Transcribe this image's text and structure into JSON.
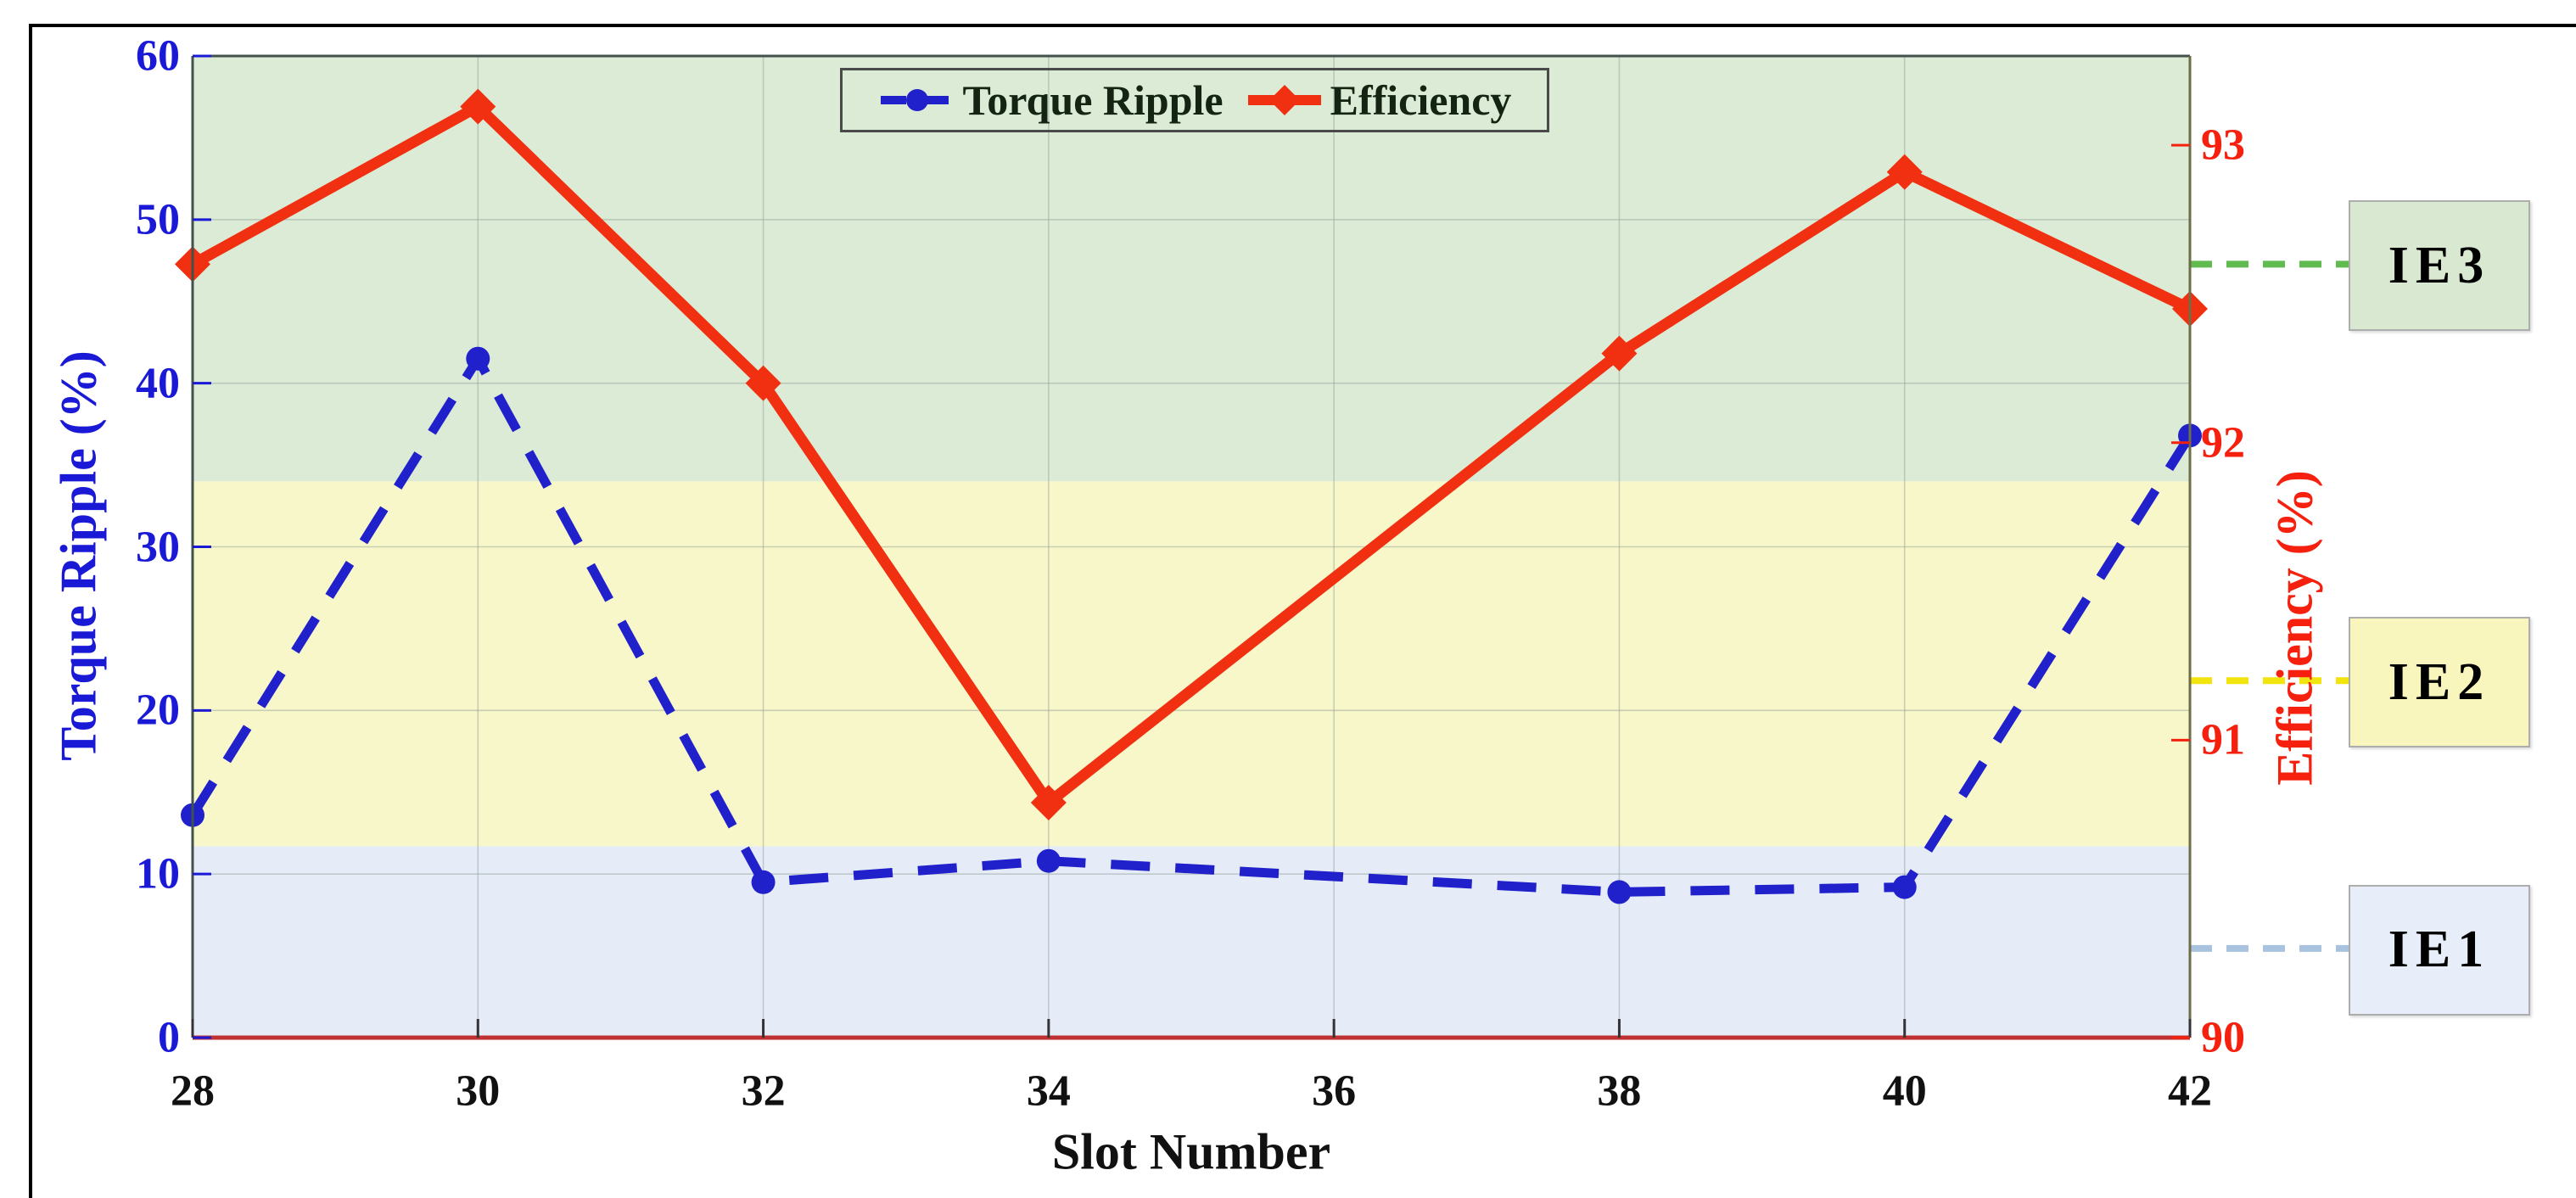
{
  "figure": {
    "background": "#ffffff",
    "border_color": "#000000"
  },
  "legend": {
    "items": [
      {
        "label": "Torque Ripple",
        "color": "#2121cc",
        "line_style": "dashed",
        "marker": "circle"
      },
      {
        "label": "Efficiency",
        "color": "#f03010",
        "line_style": "solid",
        "marker": "diamond"
      }
    ]
  },
  "chart_data": {
    "type": "line",
    "x": [
      28,
      30,
      32,
      34,
      38,
      40,
      42
    ],
    "series": [
      {
        "name": "Torque Ripple",
        "axis": "left",
        "values": [
          13.6,
          41.5,
          9.5,
          10.8,
          8.9,
          9.2,
          36.8
        ],
        "color": "#2121cc",
        "style": "dashed",
        "marker": "circle"
      },
      {
        "name": "Efficiency",
        "axis": "right",
        "values": [
          92.6,
          93.13,
          92.2,
          90.79,
          92.3,
          92.91,
          92.45
        ],
        "color": "#f03010",
        "style": "solid",
        "marker": "diamond"
      }
    ],
    "xlabel": "Slot Number",
    "ylabel_left": "Torque Ripple (%)",
    "ylabel_right": "Efficiency (%)",
    "xlim": [
      28,
      42
    ],
    "ylim_left": [
      0,
      60
    ],
    "ylim_right": [
      90,
      93.3
    ],
    "x_ticks": [
      "28",
      "30",
      "32",
      "34",
      "36",
      "38",
      "40",
      "42"
    ],
    "y_left_ticks": [
      "0",
      "10",
      "20",
      "30",
      "40",
      "50",
      "60"
    ],
    "y_right_ticks": [
      "90",
      "91",
      "92",
      "93"
    ],
    "grid": true,
    "legend_position": "top-center",
    "bands": [
      {
        "label": "IE3",
        "from_left_axis": 34,
        "to_left_axis": 60,
        "color": "#dcebd6"
      },
      {
        "label": "IE2",
        "from_left_axis": 11.7,
        "to_left_axis": 34,
        "color": "#f8f7c9"
      },
      {
        "label": "IE1",
        "from_left_axis": 0,
        "to_left_axis": 11.7,
        "color": "#e5ecf7"
      }
    ],
    "thresholds": [
      {
        "label": "IE3",
        "efficiency": 92.6,
        "line_color": "#62bb50",
        "box_color": "#d9e8d0"
      },
      {
        "label": "IE2",
        "efficiency": 91.2,
        "line_color": "#f2e40e",
        "box_color": "#f8f5bd"
      },
      {
        "label": "IE1",
        "efficiency": 90.3,
        "line_color": "#a9c2dd",
        "box_color": "#e7eef9"
      }
    ],
    "axis_colors": {
      "left": "#1a1ad6",
      "right": "#f5200d",
      "bottom_spine": "#c03030",
      "frame": "#41514b"
    }
  }
}
